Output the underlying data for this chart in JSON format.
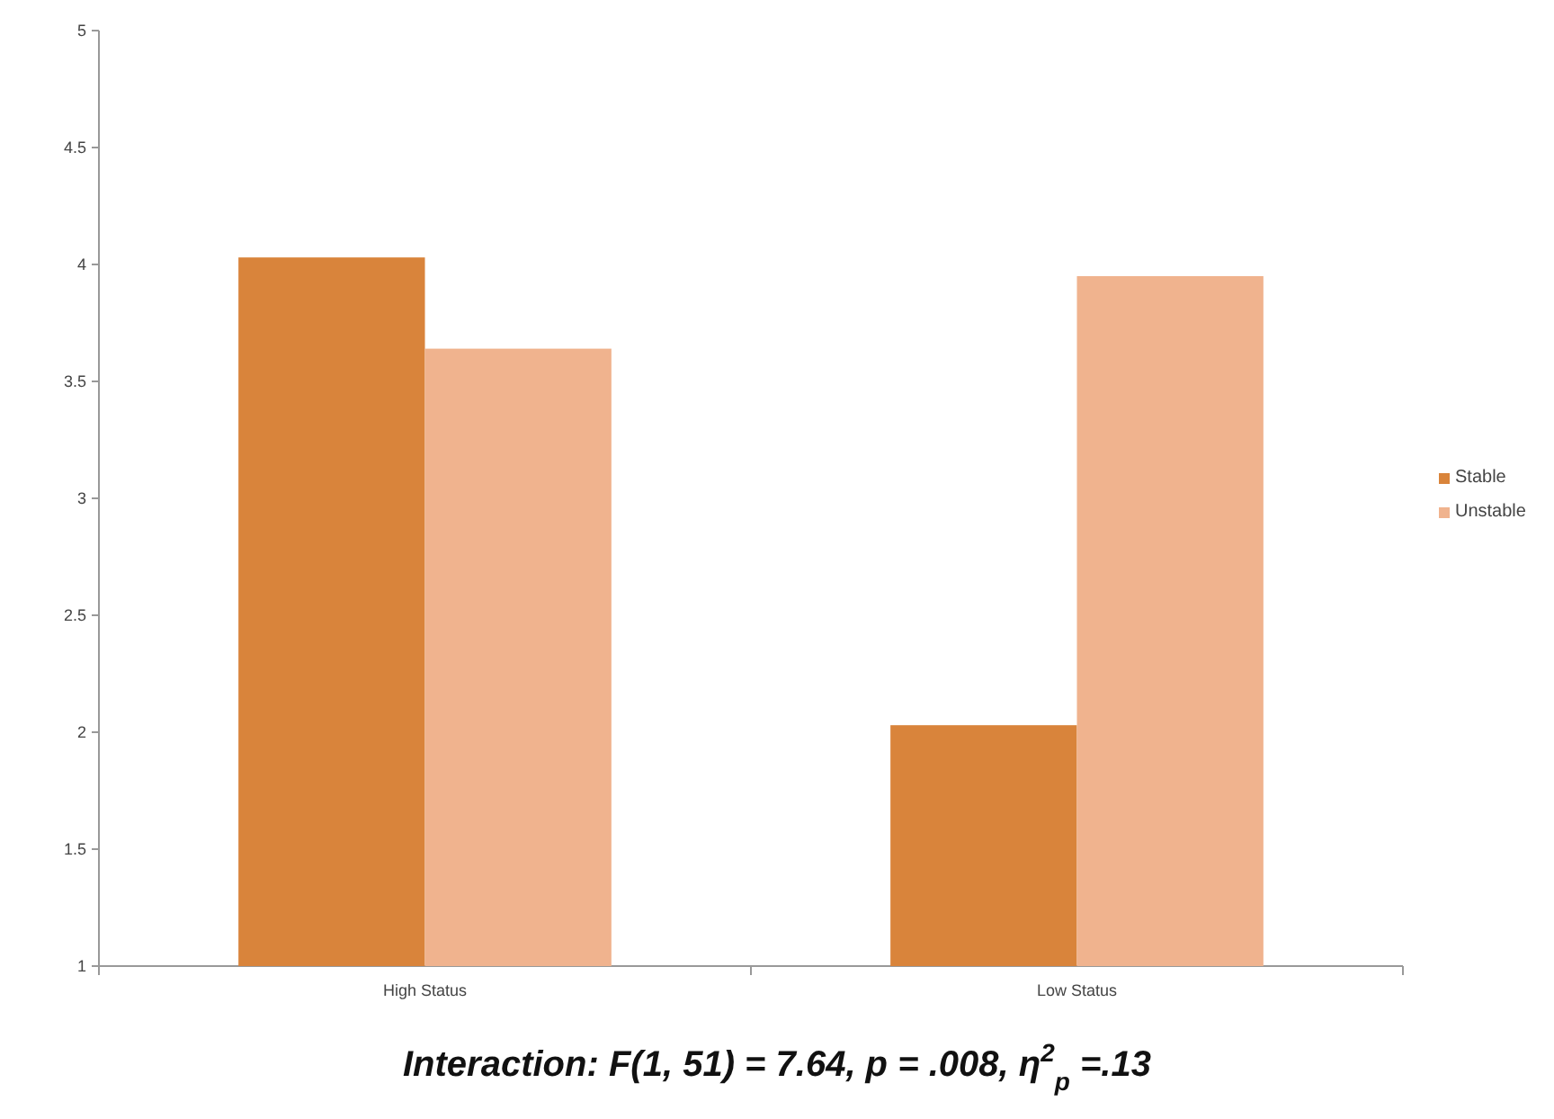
{
  "chart_data": {
    "type": "bar",
    "categories": [
      "High Status",
      "Low Status"
    ],
    "series": [
      {
        "name": "Stable",
        "color": "#d9843b",
        "values": [
          4.03,
          2.03
        ]
      },
      {
        "name": "Unstable",
        "color": "#f0b38e",
        "values": [
          3.64,
          3.95
        ]
      }
    ],
    "ylim": [
      1,
      5
    ],
    "yticks": [
      1,
      1.5,
      2,
      2.5,
      3,
      3.5,
      4,
      4.5,
      5
    ],
    "grid": false,
    "legend": "right",
    "annotations": [
      "Interaction: F(1, 51) = 7.64, p = .008, η$^{2}$$_{p}$ =.13"
    ]
  }
}
